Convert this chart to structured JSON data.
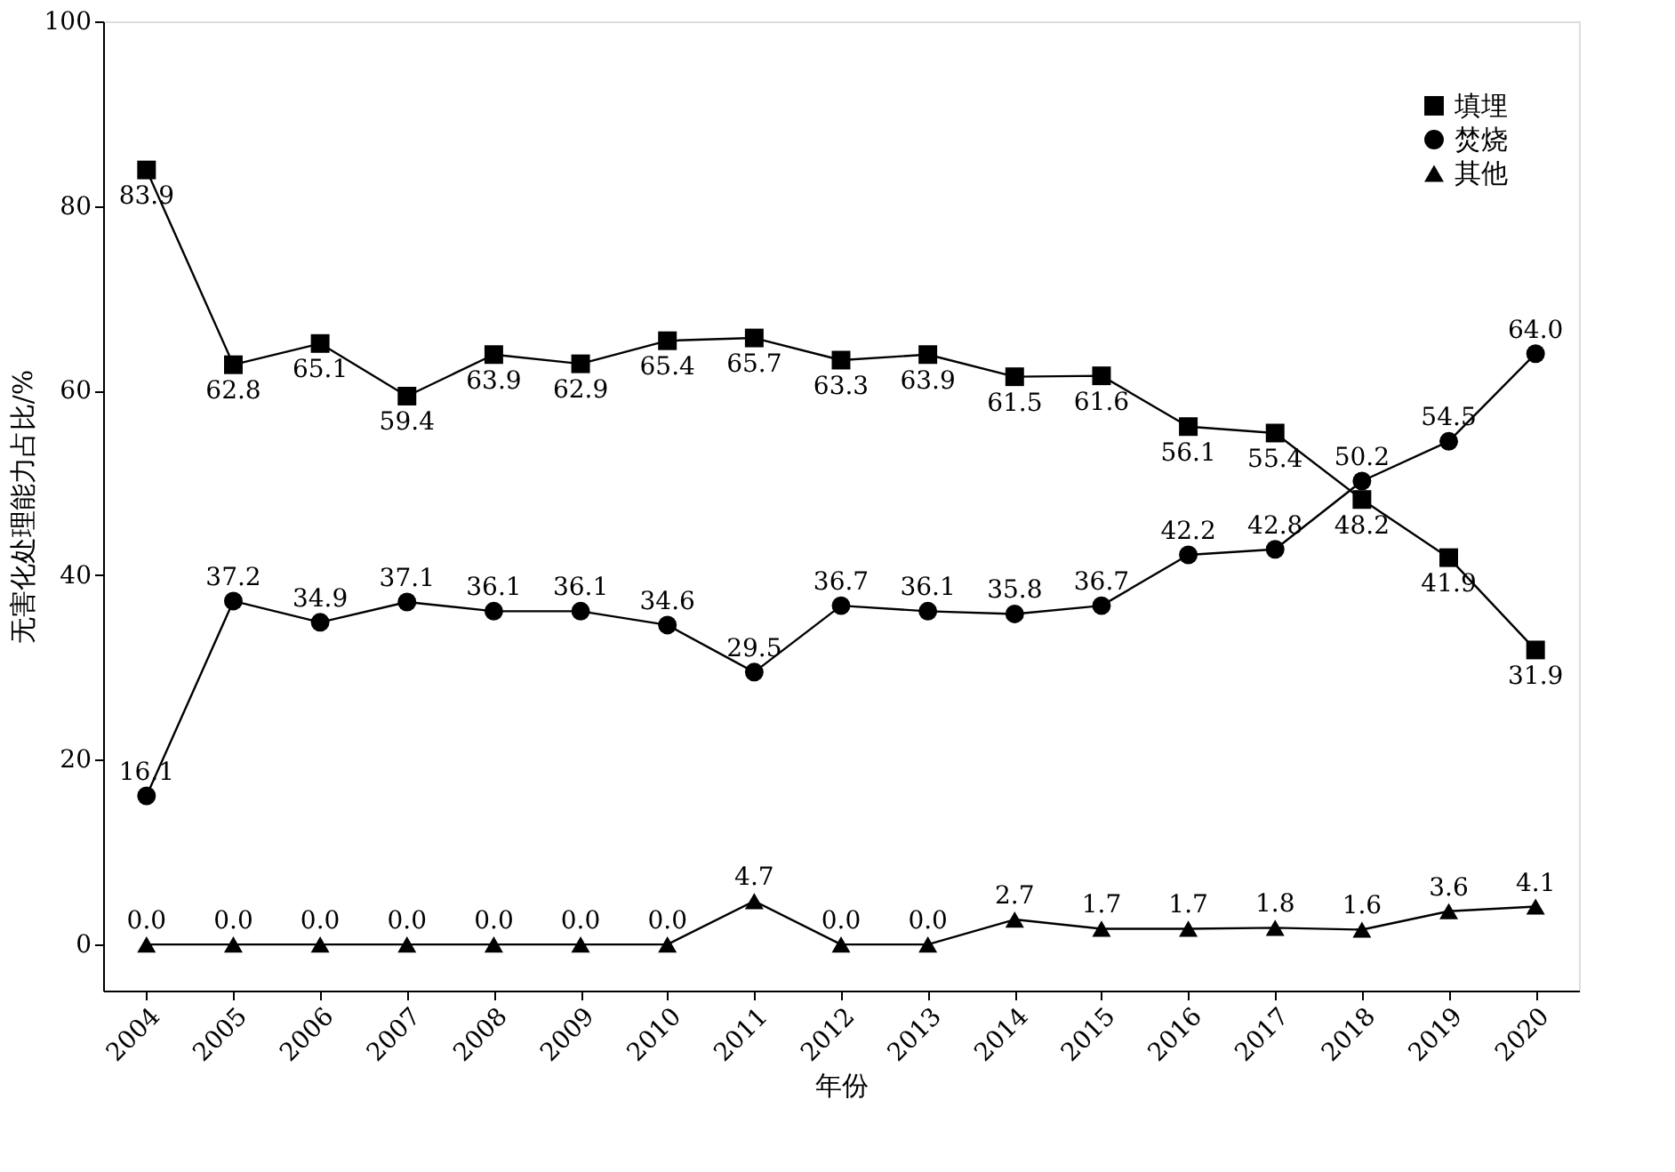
{
  "chart_data": {
    "type": "line",
    "xlabel": "年份",
    "ylabel": "无害化处理能力占比/%",
    "categories": [
      "2004",
      "2005",
      "2006",
      "2007",
      "2008",
      "2009",
      "2010",
      "2011",
      "2012",
      "2013",
      "2014",
      "2015",
      "2016",
      "2017",
      "2018",
      "2019",
      "2020"
    ],
    "ylim": [
      -5,
      100
    ],
    "yticks": [
      0,
      20,
      40,
      60,
      80,
      100
    ],
    "grid": false,
    "legend": "top right",
    "line_style": "solid",
    "series": [
      {
        "name": "填埋",
        "color": "#000000",
        "marker": "square",
        "values": [
          83.9,
          62.8,
          65.1,
          59.4,
          63.9,
          62.9,
          65.4,
          65.7,
          63.3,
          63.9,
          61.5,
          61.6,
          56.1,
          55.4,
          48.2,
          41.9,
          31.9
        ],
        "value_labels": [
          "83.9",
          "62.8",
          "65.1",
          "59.4",
          "63.9",
          "62.9",
          "65.4",
          "65.7",
          "63.3",
          "63.9",
          "61.5",
          "61.6",
          "56.1",
          "55.4",
          "48.2",
          "41.9",
          "31.9"
        ]
      },
      {
        "name": "焚烧",
        "color": "#000000",
        "marker": "circle",
        "values": [
          16.1,
          37.2,
          34.9,
          37.1,
          36.1,
          36.1,
          34.6,
          29.5,
          36.7,
          36.1,
          35.8,
          36.7,
          42.2,
          42.8,
          50.2,
          54.5,
          64.0
        ],
        "value_labels": [
          "16.1",
          "37.2",
          "34.9",
          "37.1",
          "36.1",
          "36.1",
          "34.6",
          "29.5",
          "36.7",
          "36.1",
          "35.8",
          "36.7",
          "42.2",
          "42.8",
          "50.2",
          "54.5",
          "64.0"
        ]
      },
      {
        "name": "其他",
        "color": "#000000",
        "marker": "triangle",
        "values": [
          0.0,
          0.0,
          0.0,
          0.0,
          0.0,
          0.0,
          0.0,
          4.7,
          0.0,
          0.0,
          2.7,
          1.7,
          1.7,
          1.8,
          1.6,
          3.6,
          4.1
        ],
        "value_labels": [
          "0.0",
          "0.0",
          "0.0",
          "0.0",
          "0.0",
          "0.0",
          "0.0",
          "4.7",
          "0.0",
          "0.0",
          "2.7",
          "1.7",
          "1.7",
          "1.8",
          "1.6",
          "3.6",
          "4.1"
        ]
      }
    ]
  }
}
